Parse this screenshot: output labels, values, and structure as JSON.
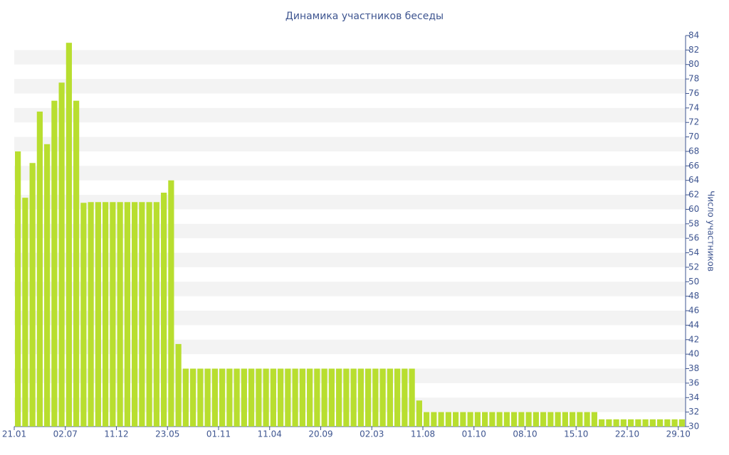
{
  "chart_data": {
    "type": "bar",
    "title": "Динамика участников беседы",
    "y_label": "Число участников",
    "categories": [
      "21.01",
      null,
      null,
      null,
      null,
      null,
      null,
      "02.07",
      null,
      null,
      null,
      null,
      null,
      null,
      "11.12",
      null,
      null,
      null,
      null,
      null,
      null,
      "23.05",
      null,
      null,
      null,
      null,
      null,
      null,
      "01.11",
      null,
      null,
      null,
      null,
      null,
      null,
      "11.04",
      null,
      null,
      null,
      null,
      null,
      null,
      "20.09",
      null,
      null,
      null,
      null,
      null,
      null,
      "02.03",
      null,
      null,
      null,
      null,
      null,
      null,
      "11.08",
      null,
      null,
      null,
      null,
      null,
      null,
      "01.10",
      null,
      null,
      null,
      null,
      null,
      null,
      "08.10",
      null,
      null,
      null,
      null,
      null,
      null,
      "15.10",
      null,
      null,
      null,
      null,
      null,
      null,
      "22.10",
      null,
      null,
      null,
      null,
      null,
      null,
      "29.10"
    ],
    "values": [
      68,
      61.6,
      66.4,
      73.5,
      69,
      75,
      77.5,
      83,
      75,
      60.9,
      61,
      61,
      61,
      61,
      61,
      61,
      61,
      61,
      61,
      61,
      62.3,
      64,
      41.4,
      38,
      38,
      38,
      38,
      38,
      38,
      38,
      38,
      38,
      38,
      38,
      38,
      38,
      38,
      38,
      38,
      38,
      38,
      38,
      38,
      38,
      38,
      38,
      38,
      38,
      38,
      38,
      38,
      38,
      38,
      38,
      38,
      33.6,
      32,
      32,
      32,
      32,
      32,
      32,
      32,
      32,
      32,
      32,
      32,
      32,
      32,
      32,
      32,
      32,
      32,
      32,
      32,
      32,
      32,
      32,
      32,
      32,
      31,
      31,
      31,
      31,
      31,
      31,
      31,
      31,
      31,
      31,
      31,
      31
    ],
    "color": "#b8de2f",
    "ylim": [
      30,
      84
    ],
    "yticks": [
      30,
      32,
      34,
      36,
      38,
      40,
      42,
      44,
      46,
      48,
      50,
      52,
      54,
      56,
      58,
      60,
      62,
      64,
      66,
      68,
      70,
      72,
      74,
      76,
      78,
      80,
      82,
      84
    ],
    "grid": true
  }
}
